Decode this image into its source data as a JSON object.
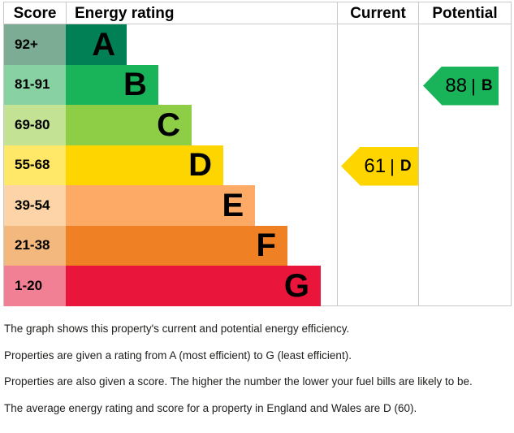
{
  "chart_data": {
    "type": "bar",
    "title": "Energy efficiency rating chart (EPC)",
    "columns": {
      "score": "Score",
      "energy_rating": "Energy rating",
      "current": "Current",
      "potential": "Potential"
    },
    "separator": "|",
    "categories": [
      "A",
      "B",
      "C",
      "D",
      "E",
      "F",
      "G"
    ],
    "bands": [
      {
        "letter": "A",
        "score_range": "92+",
        "bar_color": "#008054",
        "score_bg": "#7cac94",
        "bar_width_pct": 22.5
      },
      {
        "letter": "B",
        "score_range": "81-91",
        "bar_color": "#19b459",
        "score_bg": "#87d1a2",
        "bar_width_pct": 34.1
      },
      {
        "letter": "C",
        "score_range": "69-80",
        "bar_color": "#8dce46",
        "score_bg": "#c3e294",
        "bar_width_pct": 46.4
      },
      {
        "letter": "D",
        "score_range": "55-68",
        "bar_color": "#ffd500",
        "score_bg": "#ffe767",
        "bar_width_pct": 58.1
      },
      {
        "letter": "E",
        "score_range": "39-54",
        "bar_color": "#fcaa65",
        "score_bg": "#fcd4a7",
        "bar_width_pct": 69.8
      },
      {
        "letter": "F",
        "score_range": "21-38",
        "bar_color": "#ef8023",
        "score_bg": "#f3b87e",
        "bar_width_pct": 81.7
      },
      {
        "letter": "G",
        "score_range": "1-20",
        "bar_color": "#e9153b",
        "score_bg": "#f28094",
        "bar_width_pct": 94.0
      }
    ],
    "current": {
      "score": "61",
      "band": "D",
      "band_index": 3,
      "color": "#ffd500"
    },
    "potential": {
      "score": "88",
      "band": "B",
      "band_index": 1,
      "color": "#19b459"
    }
  },
  "footer": {
    "lines": [
      "The graph shows this property's current and potential energy efficiency.",
      "Properties are given a rating from A (most efficient) to G (least efficient).",
      "Properties are also given a score. The higher the number the lower your fuel bills are likely to be.",
      "The average energy rating and score for a property in England and Wales are D (60)."
    ]
  }
}
